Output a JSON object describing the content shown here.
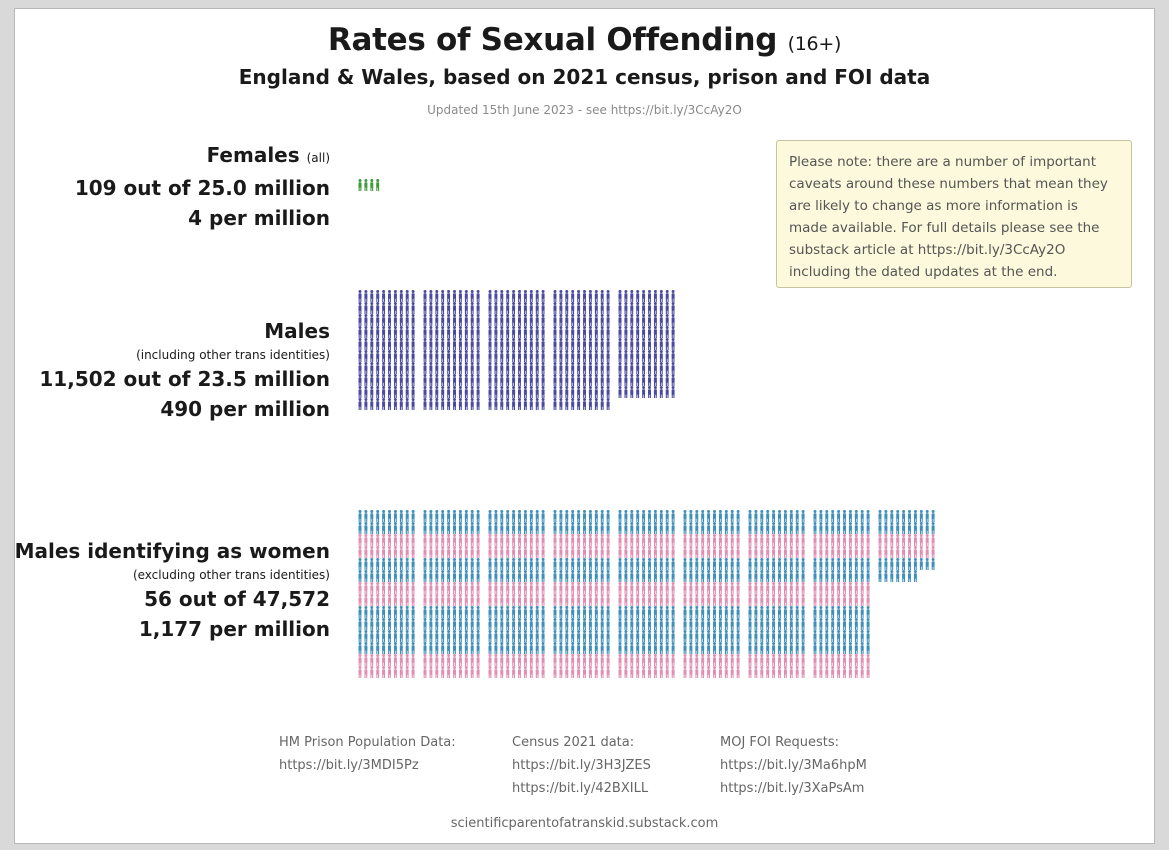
{
  "title": "Rates of Sexual Offending",
  "title_suffix": "(16+)",
  "subtitle": "England & Wales, based on 2021 census, prison and FOI data",
  "updated": "Updated 15th June 2023 - see https://bit.ly/3CcAy2O",
  "note": "Please note: there are a number of important caveats around these numbers that mean they are likely to change as more information is made available. For full details please see the substack article at https://bit.ly/3CcAy2O including the dated updates at the end.",
  "groups": [
    {
      "name": "Females",
      "qualifier": "(all)",
      "note": "",
      "count_text": "109 out of 25.0 million",
      "rate_text": "4 per million"
    },
    {
      "name": "Males",
      "qualifier": "",
      "note": "(including other trans identities)",
      "count_text": "11,502 out of 23.5 million",
      "rate_text": "490 per million"
    },
    {
      "name": "Males identifying as women",
      "qualifier": "",
      "note": "(excluding other trans identities)",
      "count_text": "56 out of 47,572",
      "rate_text": "1,177 per million"
    }
  ],
  "footer": {
    "prison": {
      "heading": "HM Prison Population Data:",
      "links": [
        "https://bit.ly/3MDI5Pz"
      ]
    },
    "census": {
      "heading": "Census 2021 data:",
      "links": [
        "https://bit.ly/3H3JZES",
        "https://bit.ly/42BXILL"
      ]
    },
    "moj": {
      "heading": "MOJ FOI Requests:",
      "links": [
        "https://bit.ly/3Ma6hpM",
        "https://bit.ly/3XaPsAm"
      ]
    },
    "site": "scientificparentofatranskid.substack.com"
  },
  "colors": {
    "female": "#3f9a3a",
    "male": "#4a4aa2",
    "trans_blue": "#3f8fba",
    "trans_pink": "#e08fb3",
    "note_bg": "#fdf9dc"
  },
  "chart_data": {
    "type": "pictogram",
    "unit": "1 figure = 1 per million",
    "series": [
      {
        "name": "Females",
        "per_million": 4,
        "count": 109,
        "population": "25.0 million"
      },
      {
        "name": "Males",
        "per_million": 490,
        "count": 11502,
        "population": "23.5 million"
      },
      {
        "name": "Males identifying as women",
        "per_million": 1177,
        "count": 56,
        "population": "47,572"
      }
    ]
  }
}
